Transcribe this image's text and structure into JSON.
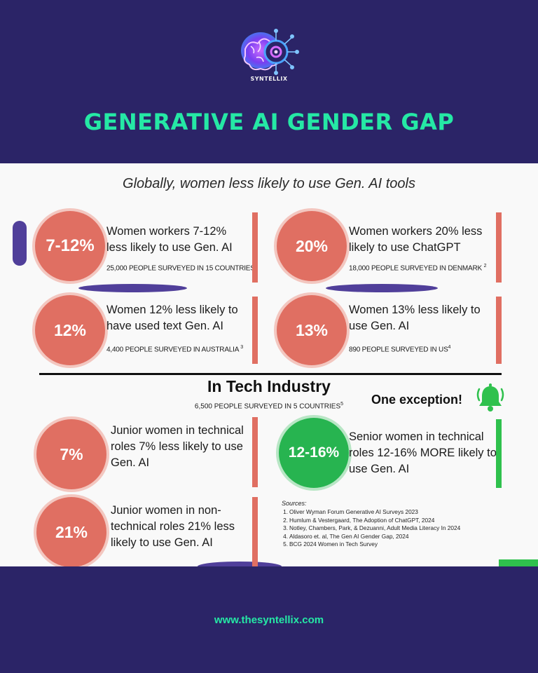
{
  "header": {
    "brand": "SYNTELLIX",
    "title": "GENERATIVE AI GENDER GAP",
    "logo_icon": "brain-circuit-icon"
  },
  "subtitle": "Globally, women less likely to use Gen. AI tools",
  "global_stats": [
    {
      "value": "7-12%",
      "text": "Women workers 7-12% less likely to use Gen. AI",
      "note": "25,000 PEOPLE SURVEYED IN 15 COUNTRIES",
      "ref": "1"
    },
    {
      "value": "20%",
      "text": "Women workers 20% less likely to use ChatGPT",
      "note": "18,000 PEOPLE SURVEYED IN DENMARK",
      "ref": "2"
    },
    {
      "value": "12%",
      "text": "Women 12% less likely to have used text Gen. AI",
      "note": "4,400 PEOPLE SURVEYED IN AUSTRALIA",
      "ref": "3"
    },
    {
      "value": "13%",
      "text": "Women 13% less likely to use Gen. AI",
      "note": "890 PEOPLE SURVEYED IN US",
      "ref": "4"
    }
  ],
  "tech": {
    "heading": "In Tech Industry",
    "note": "6,500 PEOPLE SURVEYED IN 5 COUNTRIES",
    "ref": "5",
    "exception": "One exception!",
    "bell_icon": "bell-icon",
    "stats": [
      {
        "value": "7%",
        "text": "Junior women in technical roles 7% less likely to use Gen. AI"
      },
      {
        "value": "12-16%",
        "text": "Senior women in technical roles 12-16% MORE likely to use Gen. AI"
      },
      {
        "value": "21%",
        "text": "Junior women in non-technical roles 21% less likely to use Gen. AI"
      }
    ]
  },
  "sources": {
    "heading": "Sources:",
    "items": [
      {
        "num": "1.",
        "text": "Oliver Wyman Forum Generative AI Surveys 2023"
      },
      {
        "num": "2.",
        "text": "Humlum & Vestergaard, The Adoption of ChatGPT, 2024"
      },
      {
        "num": "3.",
        "text": "Notley, Chambers, Park, & Dezuanni, Adult Media Literacy In 2024"
      },
      {
        "num": "4.",
        "text": "Aldasoro et. al, The Gen AI Gender Gap, 2024"
      },
      {
        "num": "5.",
        "text": "BCG 2024 Women in Tech Survey"
      }
    ]
  },
  "footer": {
    "url": "www.thesyntellix.com"
  },
  "colors": {
    "background": "#2b2467",
    "accent": "#25e8a5",
    "coral": "#e06f62",
    "green": "#2fc14d"
  }
}
